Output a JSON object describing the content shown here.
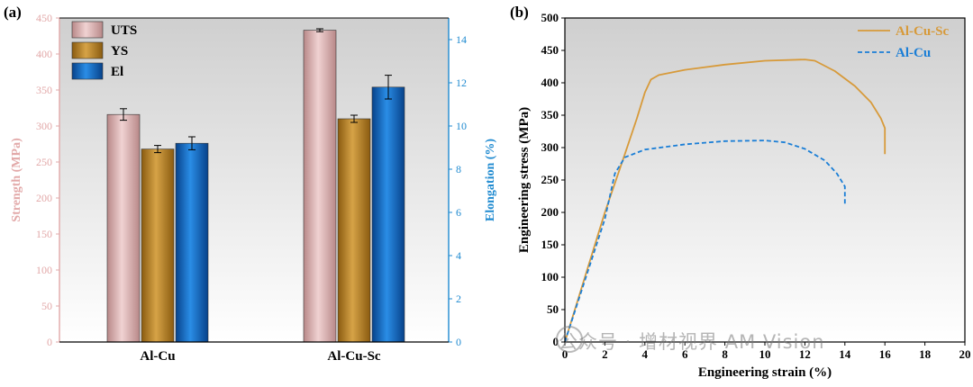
{
  "figure": {
    "panel_a_label": "(a)",
    "panel_b_label": "(b)"
  },
  "chart_data": [
    {
      "type": "bar",
      "panel": "(a)",
      "categories": [
        "Al-Cu",
        "Al-Cu-Sc"
      ],
      "series": [
        {
          "name": "UTS",
          "axis": "left",
          "values": [
            316,
            433
          ],
          "errors": [
            8,
            2
          ],
          "color": "#d8a5a6"
        },
        {
          "name": "YS",
          "axis": "left",
          "values": [
            268,
            310
          ],
          "errors": [
            5,
            5
          ],
          "color": "#b07a1e"
        },
        {
          "name": "El",
          "axis": "right",
          "values": [
            9.2,
            11.8
          ],
          "errors": [
            0.3,
            0.55
          ],
          "color": "#0c68c8"
        }
      ],
      "ylabel_left": "Strength (MPa)",
      "ylim_left": [
        0,
        450
      ],
      "yticks_left": [
        "0",
        "50",
        "100",
        "150",
        "200",
        "250",
        "300",
        "350",
        "400",
        "450"
      ],
      "ylabel_right": "Elongation (%)",
      "ylim_right": [
        0,
        15
      ],
      "yticks_right": [
        "0",
        "2",
        "4",
        "6",
        "8",
        "10",
        "12",
        "14"
      ],
      "left_axis_color": "#e2a8a8",
      "right_axis_color": "#1f8ad0",
      "legend_position": "top-left",
      "grid": false
    },
    {
      "type": "line",
      "panel": "(b)",
      "xlabel": "Engineering strain (%)",
      "ylabel": "Engineering stress (MPa)",
      "xlim": [
        0,
        20
      ],
      "ylim": [
        0,
        500
      ],
      "xticks": [
        "0",
        "2",
        "4",
        "6",
        "8",
        "10",
        "12",
        "14",
        "16",
        "18",
        "20"
      ],
      "yticks": [
        "0",
        "50",
        "100",
        "150",
        "200",
        "250",
        "300",
        "350",
        "400",
        "450",
        "500"
      ],
      "legend_position": "top-right",
      "grid": false,
      "series": [
        {
          "name": "Al-Cu-Sc",
          "color": "#d79a3a",
          "style": "solid",
          "points": [
            [
              0,
              0
            ],
            [
              1,
              100
            ],
            [
              2,
              200
            ],
            [
              3,
              290
            ],
            [
              3.6,
              345
            ],
            [
              4,
              385
            ],
            [
              4.3,
              405
            ],
            [
              4.7,
              412
            ],
            [
              6,
              420
            ],
            [
              8,
              428
            ],
            [
              10,
              434
            ],
            [
              12,
              436
            ],
            [
              12.5,
              434
            ],
            [
              13.5,
              418
            ],
            [
              14.5,
              395
            ],
            [
              15.3,
              370
            ],
            [
              15.8,
              345
            ],
            [
              16,
              330
            ],
            [
              16,
              290
            ]
          ]
        },
        {
          "name": "Al-Cu",
          "color": "#1a7ed6",
          "style": "dashed",
          "points": [
            [
              0,
              0
            ],
            [
              1,
              95
            ],
            [
              2,
              190
            ],
            [
              2.5,
              260
            ],
            [
              3,
              285
            ],
            [
              4,
              297
            ],
            [
              6,
              305
            ],
            [
              8,
              310
            ],
            [
              10,
              311
            ],
            [
              11,
              308
            ],
            [
              12,
              298
            ],
            [
              13,
              280
            ],
            [
              13.6,
              260
            ],
            [
              14,
              240
            ],
            [
              14,
              210
            ]
          ]
        }
      ]
    }
  ],
  "watermark": {
    "text": "公众号 · 增材视界 AM Vision"
  }
}
